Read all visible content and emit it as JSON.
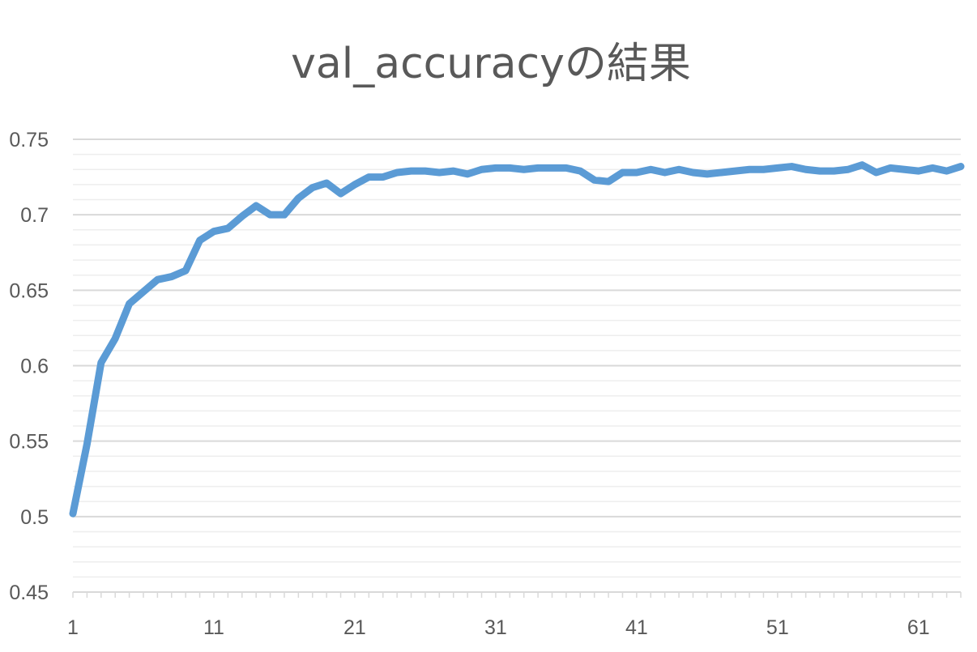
{
  "chart_data": {
    "type": "line",
    "title": "val_accuracyの結果",
    "xlabel": "",
    "ylabel": "",
    "ylim": [
      0.45,
      0.75
    ],
    "xlim": [
      1,
      64
    ],
    "y_ticks": [
      "0.45",
      "0.5",
      "0.55",
      "0.6",
      "0.65",
      "0.7",
      "0.75"
    ],
    "y_minor_step": 0.01,
    "x_ticks": [
      "1",
      "11",
      "21",
      "31",
      "41",
      "51",
      "61"
    ],
    "grid": true,
    "legend": "none",
    "line_color": "#5b9bd5",
    "series": [
      {
        "values": [
          0.502,
          0.548,
          0.602,
          0.618,
          0.641,
          0.649,
          0.657,
          0.659,
          0.663,
          0.683,
          0.689,
          0.691,
          0.699,
          0.706,
          0.7,
          0.7,
          0.711,
          0.718,
          0.721,
          0.714,
          0.72,
          0.725,
          0.725,
          0.728,
          0.729,
          0.729,
          0.728,
          0.729,
          0.727,
          0.73,
          0.731,
          0.731,
          0.73,
          0.731,
          0.731,
          0.731,
          0.729,
          0.723,
          0.722,
          0.728,
          0.728,
          0.73,
          0.728,
          0.73,
          0.728,
          0.727,
          0.728,
          0.729,
          0.73,
          0.73,
          0.731,
          0.732,
          0.73,
          0.729,
          0.729,
          0.73,
          0.733,
          0.728,
          0.731,
          0.73,
          0.729,
          0.731,
          0.729,
          0.732
        ]
      }
    ]
  }
}
